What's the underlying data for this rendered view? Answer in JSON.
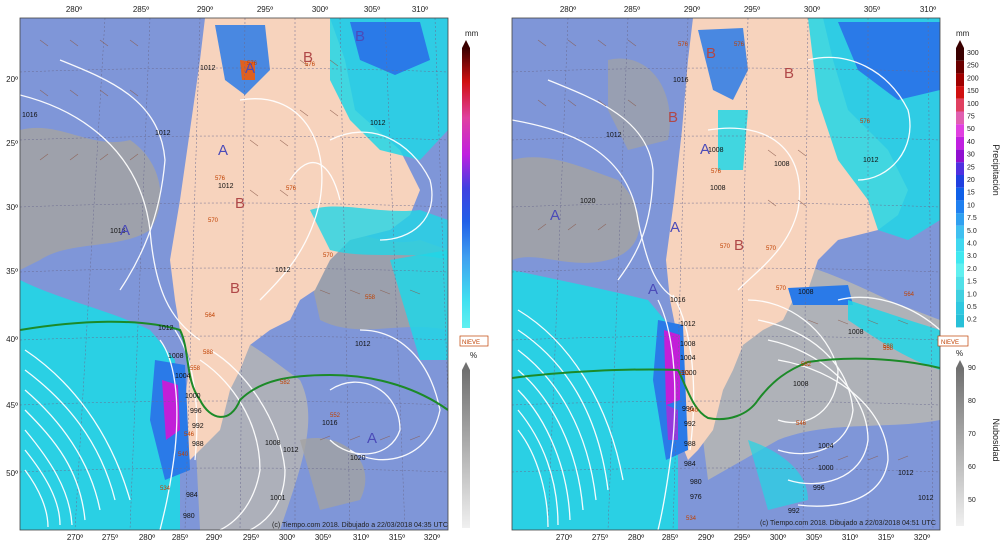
{
  "colors": {
    "ocean": "#7f96d8",
    "land": "#f7d3bd",
    "cloud": "#a9a9a9",
    "precip_light": "#21d6e6",
    "precip_mid": "#2a7ae8",
    "precip_heavy": "#c21fd8",
    "snow_line": "#1c8a28",
    "isobar": "#ffffff",
    "high_marker": "#4b4bb8",
    "low_marker": "#b04848"
  },
  "longitude_ticks": [
    "270º",
    "275º",
    "280º",
    "285º",
    "290º",
    "295º",
    "300º",
    "305º",
    "310º",
    "315º",
    "320º"
  ],
  "left_top_ticks": [
    "280º",
    "285º",
    "290º",
    "295º",
    "300º",
    "305º",
    "310º"
  ],
  "latitude_ticks": [
    "20º",
    "25º",
    "30º",
    "35º",
    "40º",
    "45º",
    "50º"
  ],
  "colorbar": {
    "unit": "mm",
    "precip_labels": [
      "300",
      "250",
      "200",
      "150",
      "100",
      "75",
      "50",
      "40",
      "30",
      "25",
      "20",
      "15",
      "10",
      "7.5",
      "5.0",
      "4.0",
      "3.0",
      "2.0",
      "1.5",
      "1.0",
      "0.5",
      "0.2"
    ],
    "precip_title": "Precipitación",
    "snow_label": "NIEVE",
    "cloud_unit": "%",
    "cloud_labels": [
      "90",
      "80",
      "70",
      "60",
      "50"
    ],
    "cloud_title": "Nubosidad"
  },
  "left_map": {
    "credit": "(c) Tiempo.com 2018. Dibujado a 22/03/2018 04:35 UTC",
    "isobar_labels": [
      "1016",
      "1012",
      "1012",
      "1012",
      "1012",
      "1016",
      "1012",
      "1012",
      "1008",
      "1004",
      "1000",
      "996",
      "992",
      "988",
      "984",
      "980",
      "1008",
      "1012",
      "1016",
      "1020",
      "1001",
      "1012"
    ],
    "pressure_systems": [
      {
        "letter": "A"
      },
      {
        "letter": "A"
      },
      {
        "letter": "A"
      },
      {
        "letter": "A"
      },
      {
        "letter": "B"
      },
      {
        "letter": "B"
      },
      {
        "letter": "B"
      },
      {
        "letter": "B"
      }
    ],
    "tags": [
      "576",
      "576",
      "576",
      "576",
      "570",
      "570",
      "564",
      "558",
      "558",
      "552",
      "546",
      "540",
      "534",
      "588",
      "582"
    ]
  },
  "right_map": {
    "credit": "(c) Tiempo.com 2018. Dibujado a 22/03/2018 04:51 UTC",
    "isobar_labels": [
      "1016",
      "1012",
      "1020",
      "1008",
      "1012",
      "1008",
      "1016",
      "1008",
      "1012",
      "1008",
      "1012",
      "1008",
      "1004",
      "1000",
      "996",
      "992",
      "988",
      "984",
      "980",
      "976",
      "1004",
      "1000",
      "996",
      "992",
      "1012",
      "1008",
      "1008"
    ],
    "pressure_systems": [
      {
        "letter": "A"
      },
      {
        "letter": "A"
      },
      {
        "letter": "A"
      },
      {
        "letter": "A"
      },
      {
        "letter": "B"
      },
      {
        "letter": "B"
      },
      {
        "letter": "B"
      },
      {
        "letter": "B"
      },
      {
        "letter": "B"
      }
    ],
    "tags": [
      "576",
      "576",
      "576",
      "576",
      "570",
      "570",
      "564",
      "558",
      "552",
      "546",
      "540",
      "534",
      "588",
      "582",
      "570"
    ]
  }
}
